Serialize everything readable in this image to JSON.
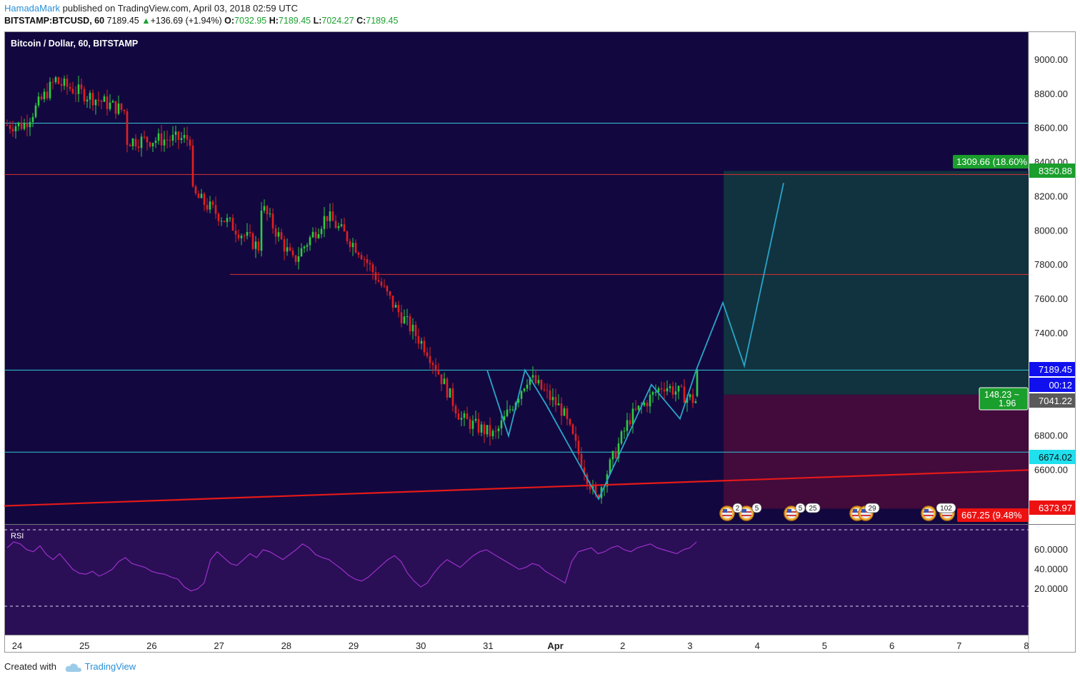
{
  "header": {
    "author": "HamadaMark",
    "published_text": "published on TradingView.com, April 03, 2018 02:59 UTC",
    "symbol": "BITSTAMP:BTCUSD, 60",
    "last": "7189.45",
    "change": "+136.69 (+1.94%)",
    "o_label": "O:",
    "o_val": "7032.95",
    "h_label": "H:",
    "h_val": "7189.45",
    "l_label": "L:",
    "l_val": "7024.27",
    "c_label": "C:",
    "c_val": "7189.45"
  },
  "chart_title": "Bitcoin / Dollar, 60, BITSTAMP",
  "rsi_label": "RSI",
  "footer": {
    "created": "Created with",
    "brand": "TradingView"
  },
  "colors": {
    "main_bg": "#12083f",
    "rsi_bg": "#2a0f57",
    "up": "#2ecc40",
    "down": "#e02020",
    "hline_cyan": "#35c4d8",
    "hline_red": "#d83232",
    "pattern": "#2aa4c8",
    "trendline": "#e51919",
    "profit_zone": "#10333f",
    "loss_zone": "#420b3c",
    "rsi_line": "#9b30c6"
  },
  "price_axis": {
    "ticks": [
      "9000.00",
      "8800.00",
      "8600.00",
      "8400.00",
      "8200.00",
      "8000.00",
      "7800.00",
      "7600.00",
      "7400.00",
      "7200.00",
      "7000.00",
      "6800.00",
      "6600.00"
    ],
    "labels": [
      {
        "text": "8350.88",
        "kind": "green"
      },
      {
        "text": "7189.45",
        "kind": "blue"
      },
      {
        "text": "00:12",
        "kind": "blue"
      },
      {
        "text": "7041.22",
        "kind": "gray"
      },
      {
        "text": "6674.02",
        "kind": "cyan"
      },
      {
        "text": "6373.97",
        "kind": "red"
      }
    ]
  },
  "rsi_axis": {
    "ticks": [
      "60.0000",
      "40.0000",
      "20.0000"
    ]
  },
  "time_axis": {
    "labels": [
      "24",
      "25",
      "26",
      "27",
      "28",
      "29",
      "30",
      "31",
      "Apr",
      "2",
      "3",
      "4",
      "5",
      "6",
      "7",
      "8"
    ]
  },
  "position": {
    "target_label": "1309.66 (18.60%",
    "risk_reward_line1": "148.23 ~",
    "risk_reward_line2": "1.96",
    "stop_label": "667.25 (9.48%"
  },
  "events": [
    "2",
    "5",
    "5",
    "25",
    "29",
    "102"
  ],
  "chart_data": {
    "type": "candlestick",
    "symbol": "BTCUSD",
    "exchange": "BITSTAMP",
    "interval_minutes": 60,
    "x_labels": [
      "24",
      "25",
      "26",
      "27",
      "28",
      "29",
      "30",
      "31",
      "Apr",
      "2",
      "3",
      "4",
      "5",
      "6",
      "7",
      "8"
    ],
    "y_range": [
      6350,
      9150
    ],
    "last_candle": {
      "open": 7032.95,
      "high": 7189.45,
      "low": 7024.27,
      "close": 7189.45
    },
    "path": [
      [
        "24",
        8620
      ],
      [
        "24",
        8900
      ],
      [
        "24",
        8950
      ],
      [
        "25",
        8700
      ],
      [
        "25",
        8520
      ],
      [
        "26",
        8540
      ],
      [
        "26",
        8380
      ],
      [
        "27",
        7900
      ],
      [
        "27",
        7760
      ],
      [
        "27",
        8170
      ],
      [
        "28",
        7820
      ],
      [
        "28",
        8090
      ],
      [
        "29",
        7880
      ],
      [
        "29",
        7560
      ],
      [
        "30",
        7300
      ],
      [
        "30",
        6900
      ],
      [
        "31",
        6800
      ],
      [
        "31",
        7150
      ],
      [
        "Apr",
        6950
      ],
      [
        "Apr",
        6430
      ],
      [
        "2",
        6900
      ],
      [
        "2",
        7100
      ],
      [
        "3",
        7000
      ],
      [
        "3",
        7189
      ]
    ],
    "horizontal_levels": [
      8630,
      8330,
      7745,
      7185,
      6705
    ],
    "trendline": {
      "from": [
        "24",
        6390
      ],
      "to": [
        "8",
        6600
      ]
    },
    "projection": [
      [
        "3",
        7189
      ],
      [
        "3",
        7580
      ],
      [
        "4",
        7210
      ],
      [
        "4",
        8280
      ]
    ],
    "long_position": {
      "entry": 7041.22,
      "target": 8350.88,
      "stop": 6373.97
    },
    "rsi": {
      "levels": [
        70,
        30
      ],
      "ticks": [
        60,
        40,
        20
      ],
      "values": [
        62,
        68,
        66,
        60,
        58,
        64,
        55,
        50,
        56,
        48,
        40,
        36,
        35,
        38,
        33,
        36,
        40,
        48,
        52,
        46,
        44,
        42,
        38,
        36,
        35,
        32,
        30,
        22,
        18,
        20,
        26,
        50,
        58,
        52,
        46,
        44,
        50,
        56,
        52,
        60,
        58,
        54,
        50,
        55,
        60,
        66,
        62,
        55,
        52,
        50,
        45,
        40,
        34,
        30,
        28,
        32,
        38,
        44,
        50,
        54,
        48,
        36,
        28,
        22,
        26,
        36,
        44,
        50,
        46,
        42,
        48,
        54,
        58,
        60,
        56,
        52,
        48,
        44,
        40,
        42,
        46,
        44,
        38,
        34,
        30,
        26,
        48,
        58,
        60,
        62,
        56,
        58,
        62,
        64,
        60,
        58,
        62,
        64,
        66,
        62,
        60,
        58,
        56,
        60,
        62,
        68
      ]
    }
  }
}
